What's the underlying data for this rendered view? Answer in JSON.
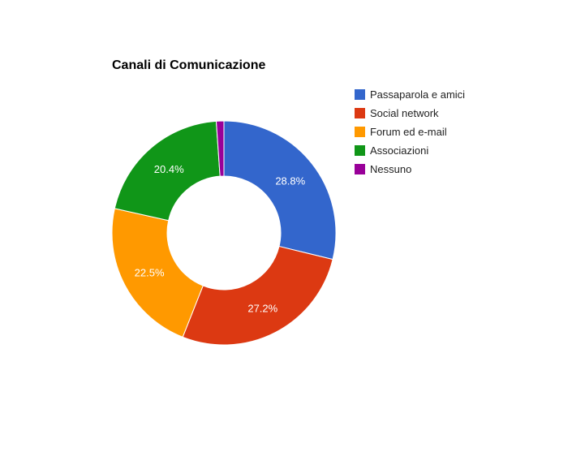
{
  "chart_data": {
    "type": "pie",
    "variant": "donut",
    "title": "Canali di Comunicazione",
    "legend_position": "right",
    "categories": [
      "Passaparola e amici",
      "Social network",
      "Forum ed e-mail",
      "Associazioni",
      "Nessuno"
    ],
    "values": [
      28.8,
      27.2,
      22.5,
      20.4,
      1.1
    ],
    "labels": [
      "28.8%",
      "27.2%",
      "22.5%",
      "20.4%",
      ""
    ],
    "colors": [
      "#3366cc",
      "#dc3912",
      "#ff9900",
      "#109618",
      "#990099"
    ]
  }
}
